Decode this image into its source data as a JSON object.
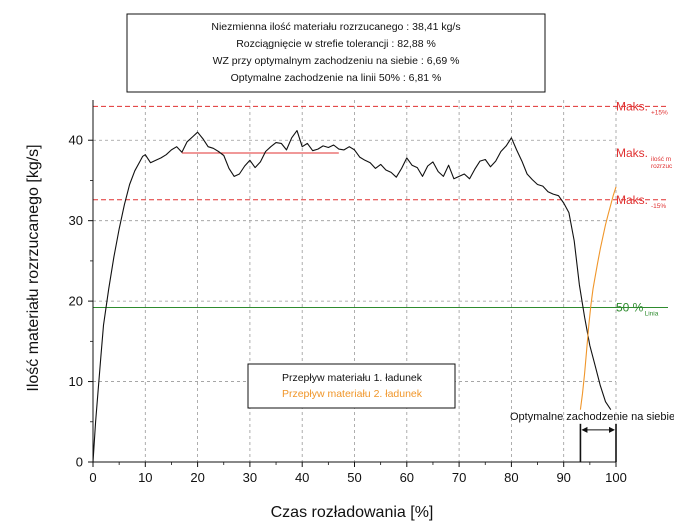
{
  "chart_data": {
    "type": "line",
    "xlabel": "Czas rozładowania [%]",
    "ylabel": "Ilość materiału rozrzucanego [kg/s]",
    "xlim": [
      0,
      100
    ],
    "ylim": [
      0,
      45
    ],
    "x_ticks": [
      0,
      10,
      20,
      30,
      40,
      50,
      60,
      70,
      80,
      90,
      100
    ],
    "y_ticks": [
      0,
      10,
      20,
      30,
      40
    ],
    "grid": true,
    "info_box": [
      "Niezmienna ilość materiału rozrzucanego : 38,41 kg/s",
      "Rozciągnięcie w strefie tolerancji : 82,88 %",
      "WZ przy optymalnym zachodzeniu na siebie : 6,69 %",
      "Optymalne zachodzenie na linii 50% : 6,81 %"
    ],
    "legend": {
      "placement": "bottom-center",
      "entries": [
        {
          "label": "Przepływ materiału 1. ładunek",
          "color": "#111111"
        },
        {
          "label": "Przepływ materiału 2. ładunek",
          "color": "#f0962a"
        }
      ]
    },
    "reference_lines": [
      {
        "y": 44.2,
        "label": "Maks.",
        "sub": [
          "+15%"
        ],
        "color": "#e03131",
        "dashed": true
      },
      {
        "y": 38.41,
        "label": "Maks.",
        "sub": [
          "ilość m",
          "rozrzuc"
        ],
        "color": "#e03131",
        "dashed": false,
        "x_from": 17,
        "x_to": 47
      },
      {
        "y": 32.6,
        "label": "Maks.",
        "sub": [
          "-15%"
        ],
        "color": "#e03131",
        "dashed": true
      },
      {
        "y": 19.2,
        "label": "50 %",
        "sub": [
          "Linia"
        ],
        "color": "#2e8b2e",
        "dashed": false
      }
    ],
    "overlap_annotation": {
      "label": "Optymalne zachodzenie na siebie",
      "x_start": 93.2,
      "x_end": 100,
      "y": 4
    },
    "series": [
      {
        "name": "Przepływ materiału 1. ładunek",
        "color": "#111111",
        "x": [
          0,
          0.5,
          1,
          1.5,
          2,
          3,
          4,
          5,
          6,
          7,
          8,
          9,
          9.5,
          10,
          11,
          12,
          13,
          14,
          15,
          16,
          17,
          18,
          19,
          20,
          21,
          22,
          23,
          24,
          25,
          26,
          27,
          28,
          29,
          30,
          31,
          32,
          33,
          34,
          35,
          36,
          37,
          38,
          39,
          40,
          41,
          42,
          43,
          44,
          45,
          46,
          47,
          48,
          49,
          50,
          51,
          52,
          53,
          54,
          55,
          56,
          57,
          58,
          59,
          60,
          61,
          62,
          63,
          64,
          65,
          66,
          67,
          68,
          69,
          70,
          71,
          72,
          73,
          74,
          75,
          76,
          77,
          78,
          79,
          80,
          81,
          82,
          83,
          84,
          85,
          86,
          87,
          88,
          89,
          90,
          91,
          92,
          93,
          94,
          95,
          96,
          97,
          98,
          99
        ],
        "y": [
          0,
          5,
          9,
          13,
          17,
          21.5,
          25.5,
          29,
          32,
          34.5,
          36.2,
          37.4,
          38,
          38.2,
          37.2,
          37.5,
          37.8,
          38.2,
          38.8,
          39.2,
          38.5,
          39.8,
          40.4,
          41,
          40.2,
          39.2,
          39,
          38.6,
          38.1,
          36.5,
          35.5,
          35.8,
          36.8,
          37.5,
          36.6,
          37.3,
          38.6,
          39.2,
          39.7,
          39.6,
          38.8,
          40.3,
          41.2,
          39.2,
          39.6,
          38.7,
          38.9,
          39.3,
          39.1,
          39.4,
          38.9,
          38.8,
          39.2,
          38.8,
          37.9,
          37.5,
          37.2,
          36.5,
          37,
          36.3,
          36,
          35.4,
          36.5,
          37.8,
          36.9,
          36.6,
          35.5,
          36.8,
          37.3,
          36.1,
          35.5,
          36.9,
          35.2,
          35.5,
          35.8,
          35.2,
          36.4,
          37.4,
          37.6,
          36.7,
          37.4,
          38.6,
          39.3,
          40.3,
          38.8,
          37.4,
          35.8,
          35.1,
          34.5,
          34.3,
          33.6,
          33.3,
          33.1,
          32.2,
          31,
          27.5,
          22,
          18,
          14.5,
          12,
          9.5,
          7.5,
          6.5
        ]
      },
      {
        "name": "Przepływ materiału 2. ładunek",
        "color": "#f0962a",
        "x": [
          93.2,
          93.6,
          94,
          94.4,
          94.8,
          95.2,
          95.6,
          96,
          96.5,
          97,
          97.5,
          98,
          98.5,
          99,
          99.5,
          100
        ],
        "y": [
          6.5,
          8.5,
          11,
          14,
          17,
          19.5,
          21.5,
          23,
          24.8,
          26.5,
          28,
          29.5,
          30.8,
          32,
          33.2,
          34.2
        ]
      }
    ]
  }
}
